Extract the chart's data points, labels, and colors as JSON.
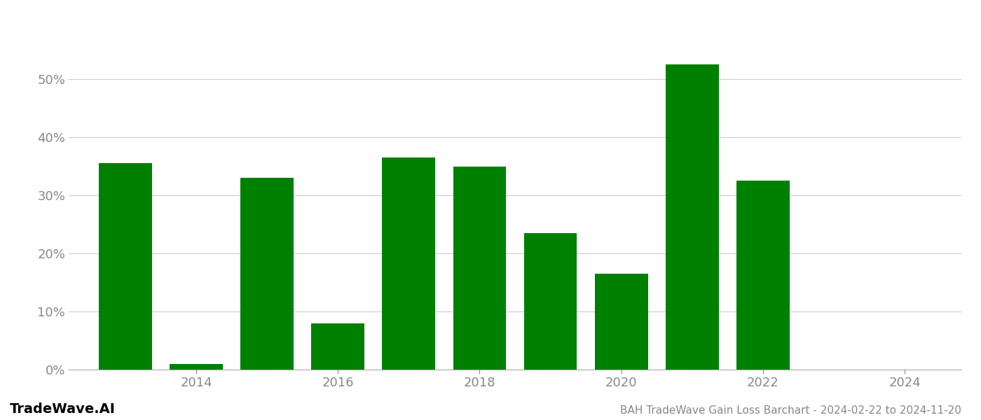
{
  "years": [
    2013,
    2014,
    2015,
    2016,
    2017,
    2018,
    2019,
    2020,
    2021,
    2022,
    2023
  ],
  "values": [
    0.355,
    0.01,
    0.33,
    0.08,
    0.365,
    0.35,
    0.235,
    0.165,
    0.525,
    0.325,
    0.0
  ],
  "bar_color": "#008000",
  "background_color": "#ffffff",
  "grid_color": "#cccccc",
  "axis_label_color": "#888888",
  "title_text": "BAH TradeWave Gain Loss Barchart - 2024-02-22 to 2024-11-20",
  "watermark_text": "TradeWave.AI",
  "ylim": [
    0,
    0.6
  ],
  "yticks": [
    0.0,
    0.1,
    0.2,
    0.3,
    0.4,
    0.5
  ],
  "xticks": [
    2014,
    2016,
    2018,
    2020,
    2022,
    2024
  ],
  "xlim": [
    2012.2,
    2024.8
  ],
  "tick_fontsize": 13,
  "title_fontsize": 11,
  "watermark_fontsize": 14,
  "bar_width": 0.75
}
